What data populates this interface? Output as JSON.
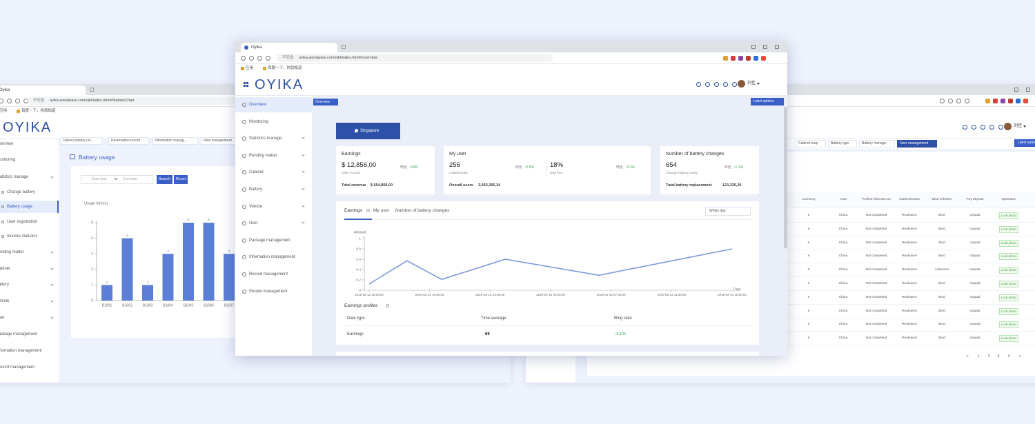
{
  "left": {
    "tab": "Oyika",
    "insecure": "不安全",
    "url": "oyika.wondware.com/oikl/index.html#/batteryChart",
    "bookmarks": [
      "应用",
      "百度一下，你就知道"
    ],
    "logo": "OYIKA",
    "menu": [
      "Overview",
      "Monitoring",
      "Statistics manage",
      "Change battery",
      "Battery usage",
      "User registration",
      "Income statistics",
      "Pending matter",
      "Cabinet",
      "Battery",
      "Vehicle",
      "User",
      "Package management",
      "Information management",
      "Record management"
    ],
    "tags": [
      "Return battery rec...",
      "Reservation record",
      "Information manag...",
      "Role management"
    ],
    "page_title": "Battery usage",
    "start": "Start date",
    "to": "to",
    "end": "End date",
    "search": "Search",
    "reset": "Reset",
    "chart": {
      "type": "bar",
      "y_label": "Usage (times)",
      "categories": [
        "B1001",
        "B1002",
        "B1003",
        "B1004",
        "B1005",
        "B1006",
        "B1007"
      ],
      "values": [
        1,
        4,
        1,
        3,
        5,
        5,
        3
      ],
      "ylim": [
        0,
        5
      ],
      "yticks": [
        0,
        1,
        2,
        3,
        4,
        5
      ],
      "color": "#5b7fd6"
    }
  },
  "center": {
    "tab": "Oyika",
    "insecure": "不安全",
    "url": "oyika.wondware.com/oikl/index.html#/overview",
    "bookmarks": [
      "应用",
      "百度一下，你就知道"
    ],
    "logo": "OYIKA",
    "user": "刘佳",
    "menu": [
      "Overview",
      "Monitoring",
      "Statistics manage",
      "Pending matter",
      "Cabinet",
      "Battery",
      "Vehicle",
      "User",
      "Package management",
      "Information management",
      "Record management",
      "People management"
    ],
    "tag": "Overview",
    "label_options": "Label options",
    "region": "Singapore",
    "cards": [
      {
        "title": "Earnings",
        "stats": [
          {
            "value": "$ 12,856,00",
            "sub": "Daily income",
            "ratio_label": "环比",
            "ratio": "↑12%"
          }
        ],
        "total_label": "Total revenue",
        "total": "$ 654,856,00"
      },
      {
        "title": "My user",
        "stats": [
          {
            "value": "256",
            "sub": "Added today",
            "ratio_label": "环比",
            "ratio": "↑2.5%"
          },
          {
            "value": "18%",
            "sub": "Day free",
            "ratio_label": "环比",
            "ratio": "↑2.1%"
          }
        ],
        "total_label": "Overall users",
        "total": "2,933,265,34"
      },
      {
        "title": "Number of battery changes",
        "stats": [
          {
            "value": "654",
            "sub": "Change battery today",
            "ratio_label": "环比",
            "ratio": "↑1.1%"
          }
        ],
        "total_label": "Total battery replacement",
        "total": "123,225,26"
      }
    ],
    "chart_tabs": [
      "Earnings",
      "My user",
      "Number of battery changes"
    ],
    "select": "Whole day",
    "chart": {
      "type": "line",
      "y_label": "Amount",
      "x_label": "Date",
      "x": [
        0,
        2.5,
        4.8,
        9,
        15.2,
        24
      ],
      "values": [
        0.12,
        0.57,
        0.21,
        0.6,
        0.29,
        0.8
      ],
      "xlim": [
        0,
        24
      ],
      "xticks": [
        {
          "value": 0,
          "label": "2019-02-12 15:00:00"
        },
        {
          "value": 4,
          "label": "2019-02-12 19:00:00"
        },
        {
          "value": 8,
          "label": "2019-02-12 23:00:00"
        },
        {
          "value": 12,
          "label": "2019-02-13 03:00:00"
        },
        {
          "value": 16,
          "label": "2019-02-13 07:00:00"
        },
        {
          "value": 20,
          "label": "2019-02-13 11:00:00"
        },
        {
          "value": 24,
          "label": "2019-02-13 15:00:00"
        }
      ],
      "ylim": [
        0,
        1
      ],
      "yticks": [
        0,
        0.2,
        0.4,
        0.6,
        0.8,
        1
      ],
      "color": "#7b97dc"
    },
    "profiles_title": "Earnings profiles",
    "profiles_table": {
      "headers": [
        "Date type",
        "Time average",
        "Ring ratio"
      ],
      "rows": [
        [
          "Earnings",
          "68",
          "↑3.1%"
        ]
      ]
    }
  },
  "right": {
    "user": "刘佳",
    "tags": [
      "Cabinet map",
      "Battery type",
      "Battery manage",
      "User management"
    ],
    "label_options": "Label options",
    "table": {
      "headers": [
        "Currency",
        "Area",
        "Perfect informat ion",
        "Authentication",
        "Bind vehicles",
        "Pay deposit",
        "Operation"
      ],
      "rows": [
        [
          "¥",
          "China",
          "Not completed",
          "Realname",
          "Bind",
          "Unpaid",
          "Look photo"
        ],
        [
          "¥",
          "China",
          "Not completed",
          "Realname",
          "Bind",
          "Unpaid",
          "Look photo"
        ],
        [
          "¥",
          "China",
          "Not completed",
          "Realname",
          "Bind",
          "Unpaid",
          "Look photo"
        ],
        [
          "¥",
          "China",
          "Not completed",
          "Realname",
          "Bind",
          "Unpaid",
          "Look photo"
        ],
        [
          "¥",
          "China",
          "Not completed",
          "Realname",
          "Unbound",
          "Unpaid",
          "Look photo"
        ],
        [
          "¥",
          "China",
          "Not completed",
          "Realname",
          "Bind",
          "Unpaid",
          "Look photo"
        ],
        [
          "¥",
          "China",
          "Not completed",
          "Realname",
          "Bind",
          "Unpaid",
          "Look photo"
        ],
        [
          "¥",
          "China",
          "Not completed",
          "Realname",
          "Bind",
          "Unpaid",
          "Look photo"
        ],
        [
          "¥",
          "China",
          "Not completed",
          "Realname",
          "Bind",
          "Unpaid",
          "Look photo"
        ],
        [
          "¥",
          "China",
          "Not completed",
          "Realname",
          "Bind",
          "Unpaid",
          "Look photo"
        ]
      ]
    },
    "pagination": [
      "<",
      "1",
      "2",
      "3",
      "4",
      ">"
    ]
  }
}
